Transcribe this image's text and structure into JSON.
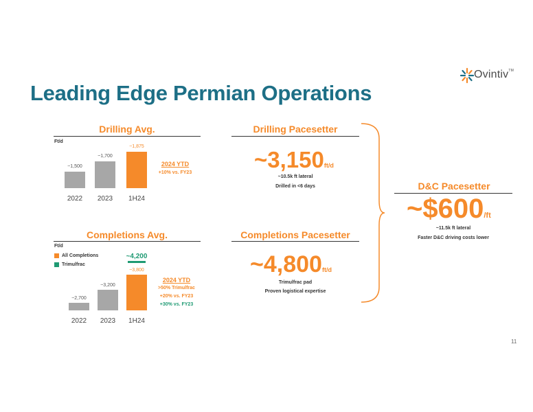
{
  "logo": {
    "name": "Ovintiv",
    "tm": "TM",
    "icon": "ovintiv-starburst-icon"
  },
  "title": "Leading Edge Permian Operations",
  "drilling_avg": {
    "heading": "Drilling Avg.",
    "unit": "Ft/d",
    "ytd_title": "2024 YTD",
    "ytd_lines": [
      "+10% vs. FY23"
    ]
  },
  "completions_avg": {
    "heading": "Completions Avg.",
    "unit": "Ft/d",
    "legend": [
      "All Completions",
      "Trimulfrac"
    ],
    "ytd_title": "2024 YTD",
    "ytd_lines": [
      ">50% Trimulfrac",
      "+20% vs. FY23",
      "+30% vs. FY23"
    ]
  },
  "drilling_pacesetter": {
    "heading": "Drilling Pacesetter",
    "value": "~3,150",
    "unit": "ft/d",
    "lines": [
      "~10.5k ft lateral",
      "Drilled in <6 days"
    ]
  },
  "completions_pacesetter": {
    "heading": "Completions Pacesetter",
    "value": "~4,800",
    "unit": "ft/d",
    "lines": [
      "Trimulfrac pad",
      "Proven logistical expertise"
    ]
  },
  "dc_pacesetter": {
    "heading": "D&C Pacesetter",
    "value": "~$600",
    "unit": "/ft",
    "lines": [
      "~11.5k ft lateral",
      "Faster D&C driving costs lower"
    ]
  },
  "page_number": "11",
  "colors": {
    "title": "#1d6f86",
    "orange": "#f58a2a",
    "gray": "#a7a7a7",
    "green": "#1f9a73"
  },
  "chart_data": [
    {
      "type": "bar",
      "title": "Drilling Avg.",
      "ylabel": "Ft/d",
      "categories": [
        "2022",
        "2023",
        "1H24"
      ],
      "values": [
        1500,
        1700,
        1875
      ],
      "labels": [
        "~1,500",
        "~1,700",
        "~1,875"
      ],
      "colors": [
        "#a7a7a7",
        "#a7a7a7",
        "#f58a2a"
      ]
    },
    {
      "type": "bar",
      "title": "Completions Avg.",
      "ylabel": "Ft/d",
      "categories": [
        "2022",
        "2023",
        "1H24"
      ],
      "series": [
        {
          "name": "All Completions",
          "values": [
            2700,
            3200,
            3800
          ],
          "labels": [
            "~2,700",
            "~3,200",
            "~3,800"
          ]
        },
        {
          "name": "Trimulfrac",
          "values": [
            null,
            null,
            4200
          ],
          "labels": [
            "",
            "",
            "~4,200"
          ]
        }
      ],
      "legend": "top-left"
    }
  ]
}
